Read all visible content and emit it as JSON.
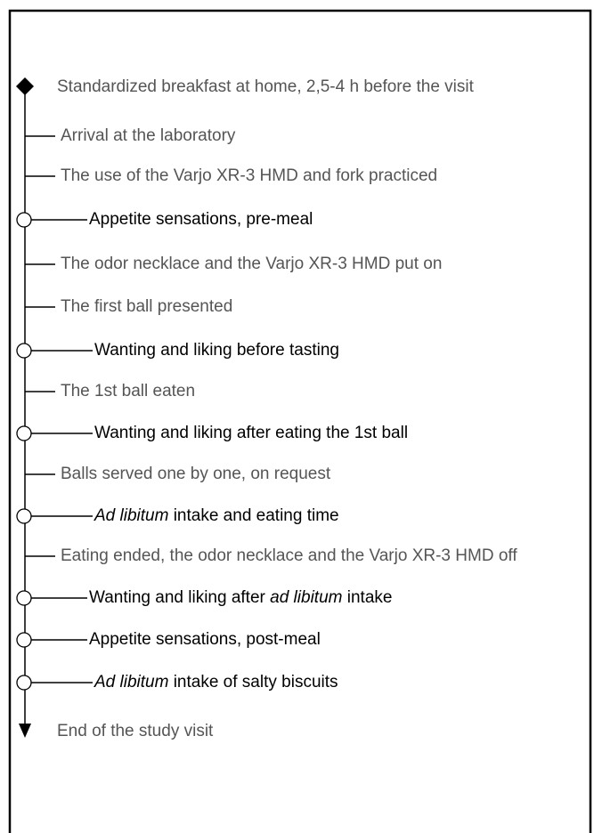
{
  "steps": [
    {
      "parts": [
        {
          "text": "Standardized breakfast at home, 2,5-4 h before the visit"
        }
      ]
    },
    {
      "parts": [
        {
          "text": "Arrival at the laboratory"
        }
      ]
    },
    {
      "parts": [
        {
          "text": "The use of the Varjo XR-3 HMD and fork practiced"
        }
      ]
    },
    {
      "parts": [
        {
          "text": "Appetite sensations, pre-meal"
        }
      ]
    },
    {
      "parts": [
        {
          "text": "The odor necklace and the Varjo XR-3 HMD put on"
        }
      ]
    },
    {
      "parts": [
        {
          "text": "The first ball presented"
        }
      ]
    },
    {
      "parts": [
        {
          "text": "Wanting and liking before tasting"
        }
      ]
    },
    {
      "parts": [
        {
          "text": "The 1st ball eaten"
        }
      ]
    },
    {
      "parts": [
        {
          "text": "Wanting and liking after eating the 1st ball"
        }
      ]
    },
    {
      "parts": [
        {
          "text": "Balls served one by one, on request"
        }
      ]
    },
    {
      "parts": [
        {
          "text": "Ad libitum",
          "italic": true
        },
        {
          "text": " intake and eating time"
        }
      ]
    },
    {
      "parts": [
        {
          "text": "Eating ended, the odor necklace and the Varjo XR-3 HMD off"
        }
      ]
    },
    {
      "parts": [
        {
          "text": "Wanting and liking after "
        },
        {
          "text": "ad libitum",
          "italic": true
        },
        {
          "text": " intake"
        }
      ]
    },
    {
      "parts": [
        {
          "text": "Appetite sensations, post-meal"
        }
      ]
    },
    {
      "parts": [
        {
          "text": "Ad libitum",
          "italic": true
        },
        {
          "text": " intake of salty biscuits"
        }
      ]
    },
    {
      "parts": [
        {
          "text": "End of the study visit"
        }
      ]
    }
  ]
}
